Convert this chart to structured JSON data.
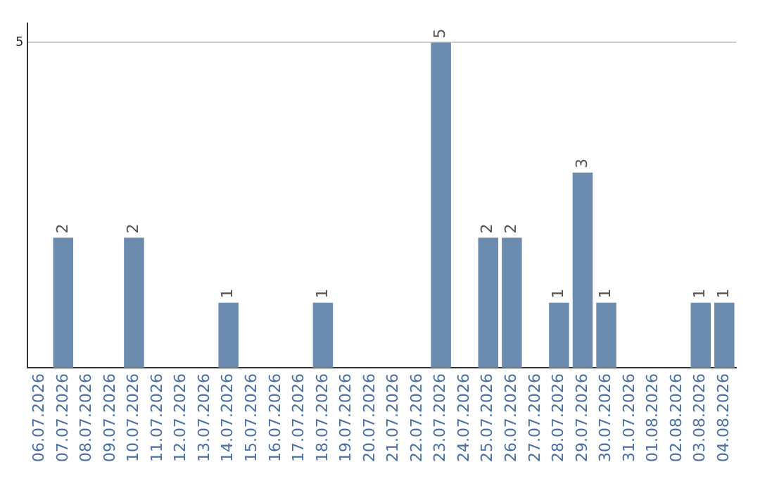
{
  "chart_data": {
    "type": "bar",
    "categories": [
      "06.07.2026",
      "07.07.2026",
      "08.07.2026",
      "09.07.2026",
      "10.07.2026",
      "11.07.2026",
      "12.07.2026",
      "13.07.2026",
      "14.07.2026",
      "15.07.2026",
      "16.07.2026",
      "17.07.2026",
      "18.07.2026",
      "19.07.2026",
      "20.07.2026",
      "21.07.2026",
      "22.07.2026",
      "23.07.2026",
      "24.07.2026",
      "25.07.2026",
      "26.07.2026",
      "27.07.2026",
      "28.07.2026",
      "29.07.2026",
      "30.07.2026",
      "31.07.2026",
      "01.08.2026",
      "02.08.2026",
      "03.08.2026",
      "04.08.2026"
    ],
    "values": [
      0,
      2,
      0,
      0,
      2,
      0,
      0,
      0,
      1,
      0,
      0,
      0,
      1,
      0,
      0,
      0,
      0,
      5,
      0,
      2,
      2,
      0,
      1,
      3,
      1,
      0,
      0,
      0,
      1,
      1
    ],
    "value_labels": [
      null,
      "2",
      null,
      null,
      "2",
      null,
      null,
      null,
      "1",
      null,
      null,
      null,
      "1",
      null,
      null,
      null,
      null,
      "5",
      null,
      "2",
      "2",
      null,
      "1",
      "3",
      "1",
      null,
      null,
      null,
      "1",
      "1"
    ],
    "color": "#6b8cae",
    "ylim": [
      0,
      5.3
    ],
    "yticks": [
      5
    ],
    "grid": "y"
  }
}
